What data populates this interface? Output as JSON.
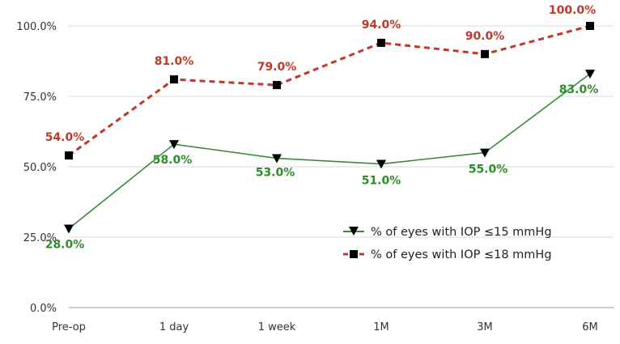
{
  "chart_data": {
    "type": "line",
    "title": "",
    "xlabel": "",
    "ylabel": "",
    "categories": [
      "Pre-op",
      "1 day",
      "1 week",
      "1M",
      "3M",
      "6M"
    ],
    "ylim": [
      0,
      100
    ],
    "yticks": [
      0,
      25,
      50,
      75,
      100
    ],
    "ytick_labels": [
      "0.0%",
      "25.0%",
      "50.0%",
      "75.0%",
      "100.0%"
    ],
    "grid": true,
    "legend_position": "bottom-right",
    "series": [
      {
        "name": "% of eyes with IOP ≤15 mmHg",
        "values": [
          28,
          58,
          53,
          51,
          55,
          83
        ],
        "labels": [
          "28.0%",
          "58.0%",
          "53.0%",
          "51.0%",
          "55.0%",
          "83.0%"
        ],
        "color": "#3a8a3a",
        "label_color": "#2e8b2e",
        "marker": "triangle-down",
        "line_style": "solid"
      },
      {
        "name": "% of eyes with IOP ≤18 mmHg",
        "values": [
          54,
          81,
          79,
          94,
          90,
          100
        ],
        "labels": [
          "54.0%",
          "81.0%",
          "79.0%",
          "94.0%",
          "90.0%",
          "100.0%"
        ],
        "color": "#c0392b",
        "label_color": "#c0392b",
        "marker": "square",
        "line_style": "dashed"
      }
    ]
  }
}
